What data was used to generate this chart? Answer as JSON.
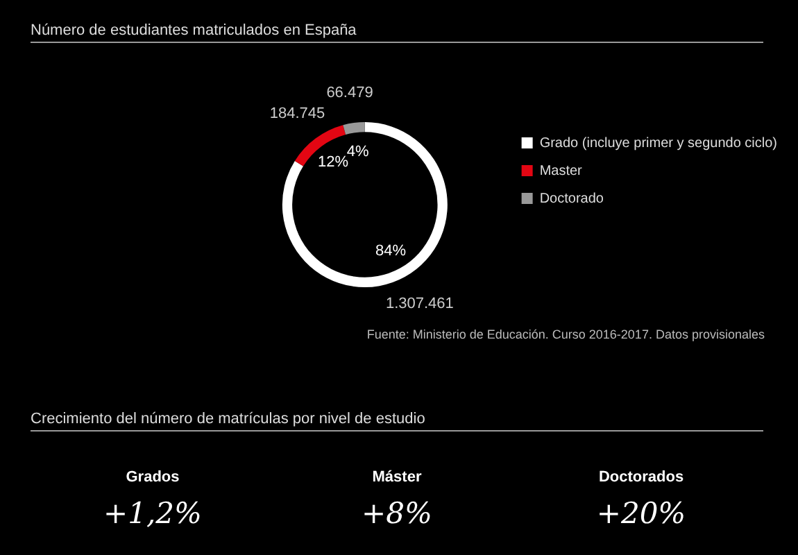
{
  "chart_data": [
    {
      "type": "donut",
      "title": "Número de estudiantes matriculados en España",
      "categories": [
        "Grado (incluye primer y segundo ciclo)",
        "Master",
        "Doctorado"
      ],
      "values": [
        1307461,
        184745,
        66479
      ],
      "colors": [
        "#ffffff",
        "#e30613",
        "#999999"
      ],
      "value_labels": [
        "1.307.461",
        "184.745",
        "66.479"
      ],
      "legend": "right",
      "annotations": [
        {
          "text": "84%",
          "x": "Grado (incluye primer y segundo ciclo)"
        },
        {
          "text": "12%",
          "x": "Master"
        },
        {
          "text": "4%",
          "x": "Doctorado"
        },
        "Fuente: Ministerio de Educación. Curso 2016-2017. Datos provisionales"
      ]
    },
    {
      "type": "other",
      "title": "Crecimiento del número de matrículas por nivel de estudio",
      "annotations": [
        "Grados",
        "+1,2%",
        "Máster",
        "+8%",
        "Doctorados",
        "+20%"
      ]
    }
  ]
}
